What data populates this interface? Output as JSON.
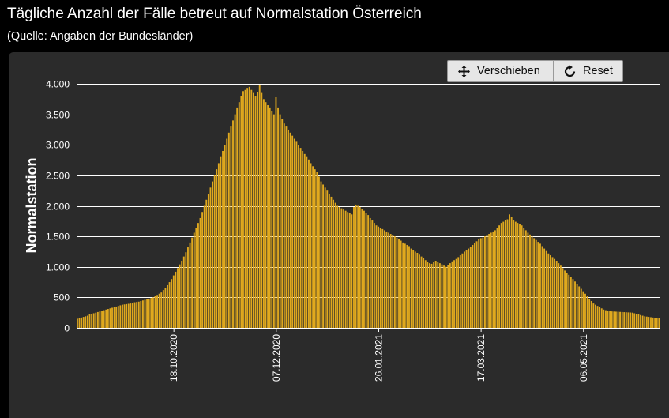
{
  "header": {
    "title": "Tägliche Anzahl der Fälle betreut auf Normalstation Österreich",
    "subtitle": "(Quelle: Angaben der Bundesländer)"
  },
  "toolbar": {
    "pan_label": "Verschieben",
    "reset_label": "Reset"
  },
  "colors": {
    "page_bg": "#000000",
    "panel_bg": "#2b2b2b",
    "bar": "#e0a91e",
    "gridline": "#ffffff",
    "text": "#ffffff"
  },
  "chart_data": {
    "type": "bar",
    "title": "Tägliche Anzahl der Fälle betreut auf Normalstation Österreich",
    "subtitle": "(Quelle: Angaben der Bundesländer)",
    "ylabel": "Normalstation",
    "xlabel": "",
    "ylim": [
      0,
      4000
    ],
    "y_ticks": [
      0,
      500,
      1000,
      1500,
      2000,
      2500,
      3000,
      3500,
      4000
    ],
    "y_tick_labels": [
      "0",
      "500",
      "1.000",
      "1.500",
      "2.000",
      "2.500",
      "3.000",
      "3.500",
      "4.000"
    ],
    "x_tick_labels": [
      "18.10.2020",
      "07.12.2020",
      "26.01.2021",
      "17.03.2021",
      "06.05.2021"
    ],
    "x_tick_dates": [
      "2020-10-18",
      "2020-12-07",
      "2021-01-26",
      "2021-03-17",
      "2021-05-06"
    ],
    "start_date": "2020-09-01",
    "grid": "horizontal",
    "legend": "none",
    "series": [
      {
        "values": [
          150,
          160,
          170,
          180,
          190,
          200,
          220,
          230,
          240,
          250,
          260,
          270,
          280,
          290,
          300,
          310,
          320,
          330,
          340,
          350,
          360,
          370,
          380,
          385,
          390,
          395,
          400,
          410,
          420,
          425,
          430,
          440,
          450,
          460,
          470,
          480,
          490,
          500,
          520,
          540,
          560,
          580,
          620,
          660,
          700,
          750,
          800,
          860,
          920,
          980,
          1040,
          1100,
          1170,
          1240,
          1320,
          1400,
          1480,
          1560,
          1640,
          1720,
          1800,
          1900,
          2000,
          2100,
          2200,
          2300,
          2400,
          2500,
          2600,
          2700,
          2800,
          2900,
          3000,
          3100,
          3200,
          3300,
          3400,
          3500,
          3600,
          3700,
          3800,
          3880,
          3900,
          3920,
          3950,
          3900,
          3850,
          3800,
          3870,
          3980,
          3850,
          3750,
          3700,
          3650,
          3600,
          3550,
          3500,
          3780,
          3600,
          3500,
          3420,
          3350,
          3300,
          3250,
          3200,
          3150,
          3100,
          3050,
          3000,
          2950,
          2900,
          2850,
          2800,
          2760,
          2700,
          2650,
          2600,
          2550,
          2480,
          2400,
          2350,
          2300,
          2250,
          2200,
          2150,
          2100,
          2050,
          2000,
          1980,
          1960,
          1940,
          1920,
          1900,
          1880,
          1860,
          1980,
          2020,
          2000,
          1980,
          1950,
          1920,
          1890,
          1850,
          1800,
          1760,
          1720,
          1680,
          1660,
          1640,
          1620,
          1600,
          1580,
          1560,
          1540,
          1520,
          1500,
          1480,
          1460,
          1430,
          1400,
          1380,
          1360,
          1340,
          1300,
          1270,
          1250,
          1230,
          1200,
          1170,
          1140,
          1110,
          1080,
          1060,
          1050,
          1080,
          1100,
          1080,
          1060,
          1040,
          1020,
          1000,
          1030,
          1060,
          1090,
          1110,
          1130,
          1160,
          1190,
          1220,
          1250,
          1280,
          1300,
          1330,
          1360,
          1390,
          1420,
          1450,
          1470,
          1480,
          1500,
          1520,
          1540,
          1560,
          1580,
          1600,
          1640,
          1680,
          1720,
          1740,
          1760,
          1780,
          1860,
          1820,
          1760,
          1740,
          1720,
          1700,
          1680,
          1640,
          1600,
          1560,
          1530,
          1500,
          1470,
          1440,
          1410,
          1380,
          1340,
          1300,
          1260,
          1220,
          1190,
          1160,
          1130,
          1100,
          1060,
          1020,
          980,
          940,
          900,
          870,
          840,
          800,
          760,
          720,
          680,
          640,
          600,
          560,
          520,
          480,
          440,
          400,
          380,
          360,
          340,
          320,
          300,
          290,
          280,
          275,
          270,
          268,
          266,
          265,
          262,
          260,
          258,
          256,
          254,
          252,
          250,
          240,
          230,
          220,
          210,
          200,
          190,
          185,
          180,
          175,
          170,
          168,
          166,
          165
        ]
      }
    ]
  }
}
